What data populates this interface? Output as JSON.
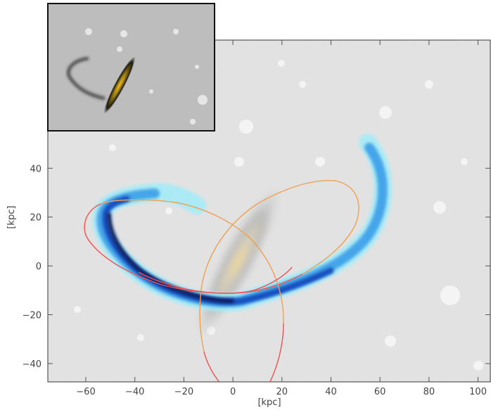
{
  "chart_data": {
    "type": "image-overlay",
    "xlabel": "[kpc]",
    "ylabel": "[kpc]",
    "xlim": [
      -75.5,
      105
    ],
    "ylim": [
      -47.5,
      92.5
    ],
    "xticks": [
      -60,
      -40,
      -20,
      0,
      20,
      40,
      60,
      80,
      100
    ],
    "yticks": [
      -40,
      -20,
      0,
      20,
      40
    ],
    "grid": false,
    "layers": [
      {
        "kind": "grayscale galaxy image with masked stars"
      },
      {
        "kind": "stellar stream density",
        "color": "#1e6fd9"
      },
      {
        "kind": "orbit",
        "color": "#f0a050"
      },
      {
        "kind": "orbit",
        "color": "#f05050"
      }
    ],
    "inset": {
      "kind": "inverted grayscale image of galaxy with tidal stream",
      "location": "top-left"
    }
  },
  "colors": {
    "stream_dark": "#0a1a5c",
    "stream_mid": "#1e6fd9",
    "stream_light": "#8fe3f5",
    "orbit_orange": "#f0a050",
    "orbit_red": "#f05050",
    "galaxy_core": "#e8c878"
  }
}
